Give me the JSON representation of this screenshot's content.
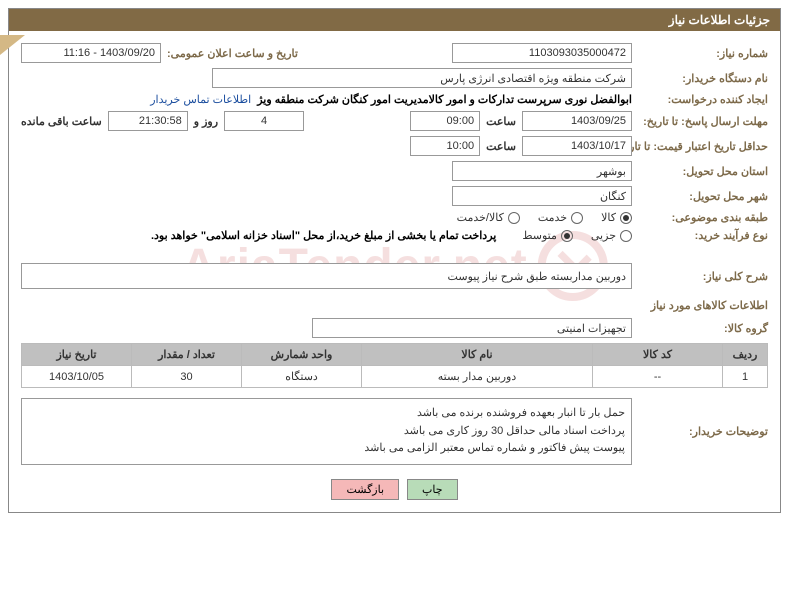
{
  "header": "جزئیات اطلاعات نیاز",
  "labels": {
    "need_no": "شماره نیاز:",
    "announce_datetime": "تاریخ و ساعت اعلان عمومی:",
    "buyer_org": "نام دستگاه خریدار:",
    "requester": "ایجاد کننده درخواست:",
    "contact_link": "اطلاعات تماس خریدار",
    "deadline_from": "مهلت ارسال پاسخ: تا تاریخ:",
    "hour": "ساعت",
    "days_and": "روز و",
    "remaining": "ساعت باقی مانده",
    "validity_from": "حداقل تاریخ اعتبار قیمت: تا تاریخ:",
    "province": "استان محل تحویل:",
    "city": "شهر محل تحویل:",
    "category": "طبقه بندی موضوعی:",
    "purchase_type": "نوع فرآیند خرید:",
    "payment_note": "پرداخت تمام یا بخشی از مبلغ خرید،از محل \"اسناد خزانه اسلامی\" خواهد بود.",
    "overview": "شرح کلی نیاز:",
    "goods_info": "اطلاعات کالاهای مورد نیاز",
    "goods_group": "گروه کالا:",
    "buyer_notes": "توضیحات خریدار:"
  },
  "values": {
    "need_no": "1103093035000472",
    "announce_datetime": "1403/09/20 - 11:16",
    "buyer_org": "شرکت منطقه ویژه اقتصادی انرژی پارس",
    "requester": "ابوالفضل نوری سرپرست تدارکات و امور کالامدیریت امور کنگان شرکت منطقه ویژ",
    "deadline_date": "1403/09/25",
    "deadline_hour": "09:00",
    "days": "4",
    "remaining_hour": "21:30:58",
    "validity_date": "1403/10/17",
    "validity_hour": "10:00",
    "province": "بوشهر",
    "city": "کنگان",
    "overview": "دوربین مداربسته طبق شرح نیاز پیوست",
    "goods_group": "تجهیزات امنیتی"
  },
  "radio_category": {
    "options": [
      "کالا",
      "خدمت",
      "کالا/خدمت"
    ],
    "selected": 0
  },
  "radio_purchase": {
    "options": [
      "جزیی",
      "متوسط"
    ],
    "selected": 1
  },
  "table": {
    "headers": [
      "ردیف",
      "کد کالا",
      "نام کالا",
      "واحد شمارش",
      "تعداد / مقدار",
      "تاریخ نیاز"
    ],
    "col_widths": [
      "45px",
      "130px",
      "auto",
      "120px",
      "110px",
      "110px"
    ],
    "rows": [
      [
        "1",
        "--",
        "دوربین مدار بسته",
        "دستگاه",
        "30",
        "1403/10/05"
      ]
    ]
  },
  "buyer_notes_lines": [
    "حمل بار تا انبار بعهده فروشنده برنده می باشد",
    "پرداخت اسناد مالی حداقل 30 روز کاری می باشد",
    "پیوست پیش فاکتور و شماره تماس معتبر  الزامی می باشد"
  ],
  "buttons": {
    "print": "چاپ",
    "back": "بازگشت"
  },
  "watermark": "AriaTender.net"
}
